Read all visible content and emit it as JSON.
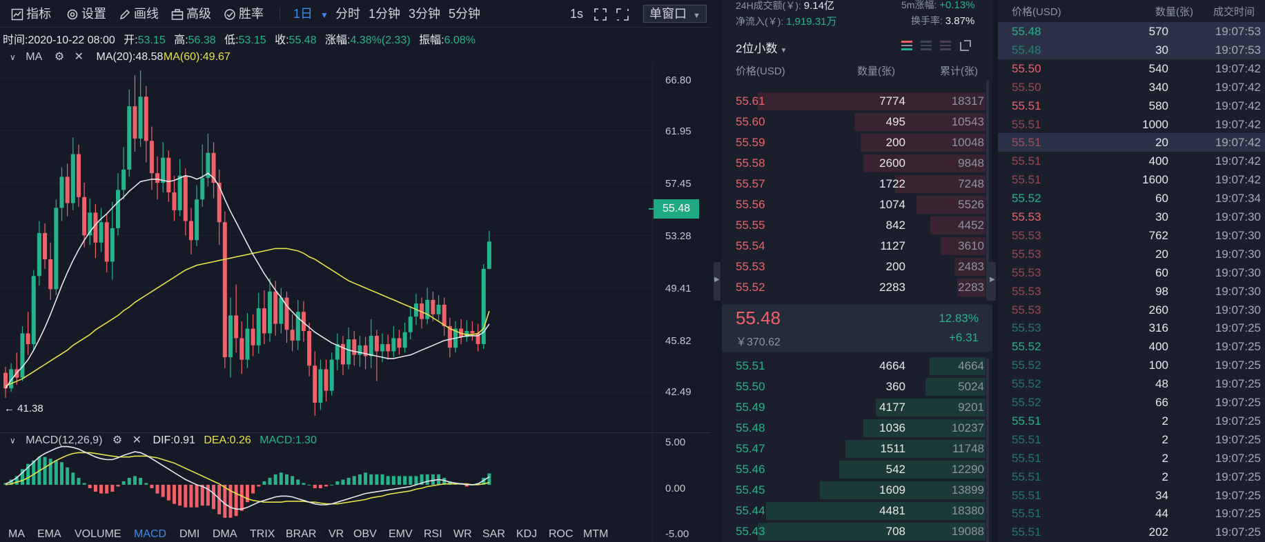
{
  "toolbar": {
    "indicator": "指标",
    "settings": "设置",
    "draw": "画线",
    "advanced": "高级",
    "winrate": "胜率",
    "interval": "1日",
    "intervals": [
      "分时",
      "1分钟",
      "3分钟",
      "5分钟"
    ],
    "seconds": "1s",
    "window_mode": "单窗口"
  },
  "stats": {
    "time_label": "时间:",
    "time": "2020-10-22 08:00",
    "open_label": "开:",
    "open": "53.15",
    "high_label": "高:",
    "high": "56.38",
    "low_label": "低:",
    "low": "53.15",
    "close_label": "收:",
    "close": "55.48",
    "change_label": "涨幅:",
    "change": "4.38%(2.33)",
    "amp_label": "振幅:",
    "amp": "6.08%"
  },
  "ma": {
    "label": "MA",
    "ma20": "MA(20):48.58",
    "ma60": "MA(60):49.67",
    "ma20_color": "#e8e8ec",
    "ma60_color": "#e6e24a"
  },
  "macd": {
    "label": "MACD(12,26,9)",
    "dif": "DIF:0.91",
    "dea": "DEA:0.26",
    "macd": "MACD:1.30"
  },
  "price_axis": [
    "66.80",
    "61.95",
    "57.45",
    "53.28",
    "49.41",
    "45.82",
    "42.49"
  ],
  "macd_axis": [
    "5.00",
    "0.00",
    "-5.00"
  ],
  "current_price": "55.48",
  "low_marker": "41.38",
  "indicators": [
    "MA",
    "EMA",
    "VOLUME",
    "MACD",
    "DMI",
    "DMA",
    "TRIX",
    "BRAR",
    "VR",
    "OBV",
    "EMV",
    "RSI",
    "WR",
    "SAR",
    "KDJ",
    "ROC",
    "MTM"
  ],
  "active_indicator": "MACD",
  "chart_data": {
    "type": "candlestick",
    "xlabel": "",
    "ylabel": "",
    "ylim": [
      40.5,
      70.5
    ],
    "candles": [
      [
        44.5,
        43.2,
        45.0,
        42.4
      ],
      [
        43.2,
        44.8,
        45.3,
        42.9
      ],
      [
        44.8,
        44.1,
        46.2,
        43.5
      ],
      [
        44.1,
        47.8,
        48.4,
        43.8
      ],
      [
        47.8,
        46.9,
        49.6,
        46.0
      ],
      [
        46.9,
        52.6,
        53.1,
        46.4
      ],
      [
        52.6,
        56.2,
        57.2,
        51.8
      ],
      [
        56.2,
        54.0,
        57.0,
        53.2
      ],
      [
        54.0,
        51.5,
        55.4,
        50.6
      ],
      [
        51.5,
        58.3,
        59.0,
        51.0
      ],
      [
        58.3,
        60.9,
        61.7,
        57.2
      ],
      [
        60.9,
        58.7,
        62.0,
        57.6
      ],
      [
        58.7,
        62.8,
        64.2,
        58.1
      ],
      [
        62.8,
        59.2,
        63.6,
        58.4
      ],
      [
        59.2,
        56.0,
        60.4,
        55.0
      ],
      [
        56.0,
        57.9,
        59.1,
        55.2
      ],
      [
        57.9,
        55.4,
        58.6,
        54.1
      ],
      [
        55.4,
        57.1,
        58.3,
        54.6
      ],
      [
        57.1,
        53.8,
        57.8,
        52.9
      ],
      [
        53.8,
        56.6,
        58.8,
        52.3
      ],
      [
        56.6,
        59.8,
        61.2,
        56.0
      ],
      [
        59.8,
        61.5,
        63.4,
        59.0
      ],
      [
        61.5,
        66.8,
        68.2,
        60.9
      ],
      [
        66.8,
        64.1,
        69.4,
        63.0
      ],
      [
        64.1,
        67.6,
        69.8,
        63.4
      ],
      [
        67.6,
        63.9,
        68.5,
        62.1
      ],
      [
        63.9,
        61.2,
        65.1,
        59.8
      ],
      [
        61.2,
        60.4,
        62.6,
        59.0
      ],
      [
        60.4,
        62.5,
        63.8,
        59.6
      ],
      [
        62.5,
        59.6,
        63.1,
        58.8
      ],
      [
        59.6,
        58.1,
        61.0,
        57.2
      ],
      [
        58.1,
        61.0,
        62.4,
        57.6
      ],
      [
        61.0,
        57.2,
        61.6,
        56.0
      ],
      [
        57.2,
        55.6,
        58.3,
        54.4
      ],
      [
        55.6,
        59.0,
        60.2,
        55.1
      ],
      [
        59.0,
        60.8,
        63.6,
        58.4
      ],
      [
        60.8,
        62.9,
        64.5,
        60.1
      ],
      [
        62.9,
        60.4,
        63.8,
        59.1
      ],
      [
        60.4,
        57.1,
        61.5,
        55.2
      ],
      [
        57.1,
        45.8,
        58.0,
        44.9
      ],
      [
        45.8,
        49.3,
        50.8,
        44.1
      ],
      [
        49.3,
        47.4,
        51.9,
        46.2
      ],
      [
        47.4,
        45.6,
        48.8,
        44.4
      ],
      [
        45.6,
        48.2,
        49.5,
        44.9
      ],
      [
        48.2,
        46.8,
        49.4,
        45.9
      ],
      [
        46.8,
        49.9,
        51.2,
        46.1
      ],
      [
        49.9,
        47.8,
        51.4,
        46.9
      ],
      [
        47.8,
        51.3,
        52.4,
        47.1
      ],
      [
        51.3,
        48.6,
        52.2,
        47.6
      ],
      [
        48.6,
        50.8,
        51.6,
        47.8
      ],
      [
        50.8,
        48.1,
        51.3,
        47.0
      ],
      [
        48.1,
        47.2,
        49.4,
        46.3
      ],
      [
        47.2,
        49.6,
        50.6,
        46.4
      ],
      [
        49.6,
        48.0,
        50.5,
        47.1
      ],
      [
        48.0,
        45.1,
        48.7,
        44.2
      ],
      [
        45.1,
        42.0,
        46.3,
        40.9
      ],
      [
        42.0,
        44.8,
        45.6,
        41.4
      ],
      [
        44.8,
        43.0,
        45.6,
        42.1
      ],
      [
        43.0,
        45.6,
        46.2,
        42.6
      ],
      [
        45.6,
        46.9,
        47.8,
        44.7
      ],
      [
        46.9,
        45.2,
        47.6,
        44.3
      ],
      [
        45.2,
        47.3,
        48.3,
        44.8
      ],
      [
        47.3,
        46.0,
        48.0,
        45.1
      ],
      [
        46.0,
        46.8,
        47.6,
        45.0
      ],
      [
        46.8,
        45.9,
        47.5,
        44.8
      ],
      [
        45.9,
        47.6,
        49.0,
        44.9
      ],
      [
        47.6,
        46.3,
        48.1,
        43.8
      ],
      [
        46.3,
        46.9,
        47.8,
        45.4
      ],
      [
        46.9,
        46.3,
        47.7,
        45.6
      ],
      [
        46.3,
        47.4,
        48.4,
        45.8
      ],
      [
        47.4,
        46.6,
        48.1,
        46.0
      ],
      [
        46.6,
        47.9,
        48.7,
        46.2
      ],
      [
        47.9,
        49.2,
        50.1,
        47.3
      ],
      [
        49.2,
        50.3,
        51.1,
        48.5
      ],
      [
        50.3,
        49.0,
        50.8,
        48.2
      ],
      [
        49.0,
        50.6,
        51.6,
        48.6
      ],
      [
        50.6,
        49.4,
        51.3,
        48.8
      ],
      [
        49.4,
        50.2,
        51.0,
        48.9
      ],
      [
        50.2,
        48.4,
        50.8,
        47.6
      ],
      [
        48.4,
        46.6,
        49.1,
        45.8
      ],
      [
        46.6,
        48.2,
        48.8,
        46.2
      ],
      [
        48.2,
        47.5,
        49.0,
        46.9
      ],
      [
        47.5,
        48.0,
        48.9,
        47.1
      ],
      [
        48.0,
        47.8,
        48.8,
        47.2
      ],
      [
        47.8,
        46.9,
        48.6,
        46.3
      ],
      [
        46.9,
        53.2,
        53.6,
        46.5
      ],
      [
        53.2,
        55.48,
        56.38,
        53.15
      ]
    ],
    "ma20": [
      43.2,
      43.9,
      44.5,
      45.0,
      45.6,
      46.4,
      47.3,
      48.3,
      49.4,
      50.6,
      51.8,
      52.9,
      53.9,
      54.8,
      55.6,
      56.3,
      56.9,
      57.4,
      57.8,
      58.3,
      58.8,
      59.2,
      59.7,
      60.1,
      60.5,
      60.6,
      60.7,
      60.7,
      60.6,
      60.5,
      60.6,
      60.8,
      61.0,
      60.9,
      60.7,
      60.9,
      61.2,
      60.8,
      60.1,
      59.0,
      58.0,
      57.1,
      56.2,
      55.3,
      54.4,
      53.6,
      52.8,
      52.1,
      51.4,
      50.8,
      50.1,
      49.6,
      49.1,
      48.7,
      48.3,
      47.9,
      47.6,
      47.3,
      47.0,
      46.8,
      46.6,
      46.4,
      46.3,
      46.2,
      46.1,
      46.0,
      45.9,
      45.8,
      45.7,
      45.7,
      45.8,
      45.9,
      46.0,
      46.2,
      46.4,
      46.6,
      46.8,
      47.0,
      47.2,
      47.3,
      47.4,
      47.5,
      47.6,
      47.6,
      47.6,
      47.9,
      48.58
    ],
    "ma60": [
      43.4,
      43.6,
      43.8,
      44.0,
      44.3,
      44.6,
      44.9,
      45.2,
      45.5,
      45.8,
      46.1,
      46.4,
      46.8,
      47.1,
      47.4,
      47.7,
      48.1,
      48.4,
      48.7,
      49.0,
      49.3,
      49.7,
      50.0,
      50.4,
      50.7,
      51.0,
      51.3,
      51.6,
      51.9,
      52.2,
      52.5,
      52.8,
      53.1,
      53.3,
      53.5,
      53.6,
      53.7,
      53.8,
      53.9,
      54.0,
      54.1,
      54.2,
      54.3,
      54.4,
      54.5,
      54.6,
      54.7,
      54.8,
      54.9,
      54.9,
      54.9,
      54.8,
      54.7,
      54.5,
      54.2,
      54.0,
      53.7,
      53.4,
      53.1,
      52.8,
      52.5,
      52.2,
      52.0,
      51.8,
      51.6,
      51.4,
      51.2,
      51.0,
      50.8,
      50.6,
      50.4,
      50.2,
      50.0,
      49.8,
      49.6,
      49.4,
      49.1,
      48.8,
      48.5,
      48.2,
      48.0,
      47.8,
      47.7,
      47.7,
      47.8,
      48.2,
      49.67
    ],
    "macd_ylim": [
      -5,
      5
    ],
    "dif": [
      0.1,
      0.4,
      0.8,
      1.4,
      2.0,
      2.6,
      3.2,
      3.6,
      3.9,
      4.2,
      4.4,
      4.4,
      4.3,
      4.1,
      3.8,
      3.5,
      3.2,
      3.0,
      2.9,
      2.9,
      3.1,
      3.4,
      3.6,
      3.8,
      3.7,
      3.4,
      3.0,
      2.6,
      2.2,
      1.8,
      1.4,
      1.0,
      0.6,
      0.3,
      0.0,
      -0.2,
      -0.5,
      -1.0,
      -1.6,
      -2.2,
      -2.6,
      -2.8,
      -2.8,
      -2.6,
      -2.3,
      -2.0,
      -1.8,
      -1.6,
      -1.4,
      -1.3,
      -1.3,
      -1.4,
      -1.6,
      -1.8,
      -2.0,
      -2.2,
      -2.3,
      -2.3,
      -2.2,
      -2.0,
      -1.8,
      -1.6,
      -1.4,
      -1.2,
      -1.0,
      -0.9,
      -0.8,
      -0.7,
      -0.6,
      -0.5,
      -0.4,
      -0.3,
      -0.2,
      0.0,
      0.2,
      0.4,
      0.5,
      0.6,
      0.5,
      0.3,
      0.2,
      0.1,
      0.0,
      0.0,
      0.1,
      0.5,
      0.91
    ],
    "dea": [
      0.0,
      0.1,
      0.3,
      0.5,
      0.8,
      1.2,
      1.6,
      2.0,
      2.4,
      2.8,
      3.1,
      3.4,
      3.6,
      3.7,
      3.7,
      3.7,
      3.6,
      3.5,
      3.4,
      3.3,
      3.2,
      3.2,
      3.2,
      3.3,
      3.3,
      3.3,
      3.2,
      3.1,
      2.9,
      2.7,
      2.5,
      2.2,
      1.9,
      1.6,
      1.3,
      1.0,
      0.7,
      0.4,
      0.1,
      -0.3,
      -0.7,
      -1.0,
      -1.3,
      -1.6,
      -1.8,
      -1.9,
      -2.0,
      -2.0,
      -2.0,
      -2.0,
      -1.9,
      -1.9,
      -1.9,
      -1.9,
      -2.0,
      -2.0,
      -2.1,
      -2.2,
      -2.2,
      -2.2,
      -2.1,
      -2.0,
      -1.9,
      -1.8,
      -1.7,
      -1.5,
      -1.4,
      -1.3,
      -1.1,
      -1.0,
      -0.9,
      -0.8,
      -0.7,
      -0.5,
      -0.4,
      -0.2,
      -0.1,
      0.0,
      0.1,
      0.1,
      0.1,
      0.1,
      0.1,
      0.0,
      0.0,
      0.1,
      0.26
    ],
    "hist": [
      0.2,
      0.6,
      1.0,
      1.8,
      2.4,
      2.8,
      3.2,
      3.2,
      3.0,
      2.8,
      2.6,
      2.0,
      1.4,
      0.8,
      0.2,
      -0.4,
      -0.8,
      -1.0,
      -1.0,
      -0.8,
      -0.2,
      0.4,
      0.8,
      1.0,
      0.8,
      0.2,
      -0.4,
      -1.0,
      -1.4,
      -1.8,
      -2.2,
      -2.4,
      -2.6,
      -2.6,
      -2.6,
      -2.4,
      -2.4,
      -2.8,
      -3.4,
      -3.8,
      -3.8,
      -3.6,
      -3.0,
      -2.0,
      -1.0,
      -0.2,
      0.4,
      0.8,
      1.2,
      1.4,
      1.2,
      1.0,
      0.6,
      0.2,
      0.0,
      -0.4,
      -0.4,
      -0.2,
      0.0,
      0.4,
      0.6,
      0.8,
      1.0,
      1.2,
      1.4,
      1.2,
      1.2,
      1.2,
      1.0,
      1.0,
      1.0,
      1.0,
      1.0,
      1.0,
      1.2,
      1.2,
      1.2,
      1.2,
      0.8,
      0.4,
      0.2,
      0.2,
      -0.2,
      0.0,
      0.2,
      0.8,
      1.3
    ]
  },
  "orderbook": {
    "vol_label": "24H成交额(￥):",
    "vol": "9.14亿",
    "m5_label": "5m涨幅:",
    "m5": "+0.13%",
    "inflow_label": "净流入(￥):",
    "inflow": "1,919.31万",
    "turnover_label": "换手率:",
    "turnover": "3.87%",
    "precision": "2位小数",
    "col_price": "价格(USD)",
    "col_qty": "数量(张)",
    "col_cum": "累计(张)",
    "asks": [
      {
        "p": "55.61",
        "q": "7774",
        "c": "18317"
      },
      {
        "p": "55.60",
        "q": "495",
        "c": "10543"
      },
      {
        "p": "55.59",
        "q": "200",
        "c": "10048"
      },
      {
        "p": "55.58",
        "q": "2600",
        "c": "9848"
      },
      {
        "p": "55.57",
        "q": "1722",
        "c": "7248"
      },
      {
        "p": "55.56",
        "q": "1074",
        "c": "5526"
      },
      {
        "p": "55.55",
        "q": "842",
        "c": "4452"
      },
      {
        "p": "55.54",
        "q": "1127",
        "c": "3610"
      },
      {
        "p": "55.53",
        "q": "200",
        "c": "2483"
      },
      {
        "p": "55.52",
        "q": "2283",
        "c": "2283"
      }
    ],
    "mid_price": "55.48",
    "mid_cny": "￥370.62",
    "mid_pct": "12.83%",
    "mid_chg": "+6.31",
    "bids": [
      {
        "p": "55.51",
        "q": "4664",
        "c": "4664"
      },
      {
        "p": "55.50",
        "q": "360",
        "c": "5024"
      },
      {
        "p": "55.49",
        "q": "4177",
        "c": "9201"
      },
      {
        "p": "55.48",
        "q": "1036",
        "c": "10237"
      },
      {
        "p": "55.47",
        "q": "1511",
        "c": "11748"
      },
      {
        "p": "55.46",
        "q": "542",
        "c": "12290"
      },
      {
        "p": "55.45",
        "q": "1609",
        "c": "13899"
      },
      {
        "p": "55.44",
        "q": "4481",
        "c": "18380"
      },
      {
        "p": "55.43",
        "q": "708",
        "c": "19088"
      }
    ]
  },
  "trades": {
    "col_price": "价格(USD)",
    "col_qty": "数量(张)",
    "col_time": "成交时间",
    "rows": [
      {
        "p": "55.48",
        "q": "570",
        "t": "19:07:53",
        "s": "up",
        "dim": false,
        "hl": true
      },
      {
        "p": "55.48",
        "q": "30",
        "t": "19:07:53",
        "s": "up",
        "dim": true,
        "hl": true
      },
      {
        "p": "55.50",
        "q": "540",
        "t": "19:07:42",
        "s": "dn",
        "dim": false,
        "hl": false
      },
      {
        "p": "55.50",
        "q": "340",
        "t": "19:07:42",
        "s": "dn",
        "dim": true,
        "hl": false
      },
      {
        "p": "55.51",
        "q": "580",
        "t": "19:07:42",
        "s": "dn",
        "dim": false,
        "hl": false
      },
      {
        "p": "55.51",
        "q": "1000",
        "t": "19:07:42",
        "s": "dn",
        "dim": true,
        "hl": false
      },
      {
        "p": "55.51",
        "q": "20",
        "t": "19:07:42",
        "s": "dn",
        "dim": true,
        "hl": true
      },
      {
        "p": "55.51",
        "q": "400",
        "t": "19:07:42",
        "s": "dn",
        "dim": true,
        "hl": false
      },
      {
        "p": "55.51",
        "q": "1600",
        "t": "19:07:42",
        "s": "dn",
        "dim": true,
        "hl": false
      },
      {
        "p": "55.52",
        "q": "60",
        "t": "19:07:34",
        "s": "up",
        "dim": false,
        "hl": false
      },
      {
        "p": "55.53",
        "q": "30",
        "t": "19:07:30",
        "s": "dn",
        "dim": false,
        "hl": false
      },
      {
        "p": "55.53",
        "q": "762",
        "t": "19:07:30",
        "s": "dn",
        "dim": true,
        "hl": false
      },
      {
        "p": "55.53",
        "q": "20",
        "t": "19:07:30",
        "s": "dn",
        "dim": true,
        "hl": false
      },
      {
        "p": "55.53",
        "q": "60",
        "t": "19:07:30",
        "s": "dn",
        "dim": true,
        "hl": false
      },
      {
        "p": "55.53",
        "q": "98",
        "t": "19:07:30",
        "s": "dn",
        "dim": true,
        "hl": false
      },
      {
        "p": "55.53",
        "q": "260",
        "t": "19:07:30",
        "s": "dn",
        "dim": true,
        "hl": false
      },
      {
        "p": "55.53",
        "q": "316",
        "t": "19:07:25",
        "s": "up",
        "dim": true,
        "hl": false
      },
      {
        "p": "55.52",
        "q": "400",
        "t": "19:07:25",
        "s": "up",
        "dim": false,
        "hl": false
      },
      {
        "p": "55.52",
        "q": "100",
        "t": "19:07:25",
        "s": "up",
        "dim": true,
        "hl": false
      },
      {
        "p": "55.52",
        "q": "48",
        "t": "19:07:25",
        "s": "up",
        "dim": true,
        "hl": false
      },
      {
        "p": "55.52",
        "q": "66",
        "t": "19:07:25",
        "s": "up",
        "dim": true,
        "hl": false
      },
      {
        "p": "55.51",
        "q": "2",
        "t": "19:07:25",
        "s": "up",
        "dim": false,
        "hl": false
      },
      {
        "p": "55.51",
        "q": "2",
        "t": "19:07:25",
        "s": "up",
        "dim": true,
        "hl": false
      },
      {
        "p": "55.51",
        "q": "2",
        "t": "19:07:25",
        "s": "up",
        "dim": true,
        "hl": false
      },
      {
        "p": "55.51",
        "q": "2",
        "t": "19:07:25",
        "s": "up",
        "dim": true,
        "hl": false
      },
      {
        "p": "55.51",
        "q": "34",
        "t": "19:07:25",
        "s": "up",
        "dim": true,
        "hl": false
      },
      {
        "p": "55.51",
        "q": "44",
        "t": "19:07:25",
        "s": "up",
        "dim": true,
        "hl": false
      },
      {
        "p": "55.51",
        "q": "202",
        "t": "19:07:25",
        "s": "up",
        "dim": true,
        "hl": false
      }
    ]
  },
  "colors": {
    "up": "#26b38c",
    "down": "#f0616a",
    "accent": "#3b8cf0",
    "background": "#161a26"
  }
}
